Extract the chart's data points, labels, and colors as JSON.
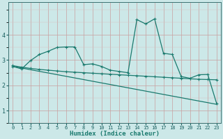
{
  "xlabel": "Humidex (Indice chaleur)",
  "bg_color": "#cce8e8",
  "line_color": "#1a7a6e",
  "grid_color_major": "#c8a0a0",
  "grid_color_minor": "#d8c0c0",
  "xlim": [
    -0.5,
    23.5
  ],
  "ylim": [
    0.5,
    5.3
  ],
  "yticks": [
    1,
    2,
    3,
    4
  ],
  "xticks": [
    0,
    1,
    2,
    3,
    4,
    5,
    6,
    7,
    8,
    9,
    10,
    11,
    12,
    13,
    14,
    15,
    16,
    17,
    18,
    19,
    20,
    21,
    22,
    23
  ],
  "curve1_x": [
    0,
    1,
    2,
    3,
    4,
    5,
    6,
    7,
    8,
    9,
    10,
    11,
    12,
    13,
    14,
    15,
    16,
    17,
    18,
    19,
    20,
    21,
    22,
    23
  ],
  "curve1_y": [
    2.75,
    2.65,
    2.98,
    3.22,
    3.35,
    3.5,
    3.52,
    3.52,
    2.82,
    2.85,
    2.75,
    2.6,
    2.55,
    2.5,
    4.6,
    4.43,
    4.63,
    3.27,
    3.22,
    2.35,
    2.28,
    2.42,
    2.43,
    1.28
  ],
  "curve2_x": [
    0,
    1,
    2,
    3,
    4,
    5,
    6,
    7,
    8,
    9,
    10,
    11,
    12,
    13,
    14,
    15,
    16,
    17,
    18,
    19,
    20,
    21,
    22,
    23
  ],
  "curve2_y": [
    2.78,
    2.72,
    2.67,
    2.63,
    2.6,
    2.57,
    2.54,
    2.52,
    2.5,
    2.48,
    2.46,
    2.44,
    2.42,
    2.4,
    2.38,
    2.36,
    2.34,
    2.32,
    2.3,
    2.28,
    2.26,
    2.24,
    2.23,
    2.22
  ],
  "curve3_x": [
    0,
    23
  ],
  "curve3_y": [
    2.75,
    1.25
  ]
}
